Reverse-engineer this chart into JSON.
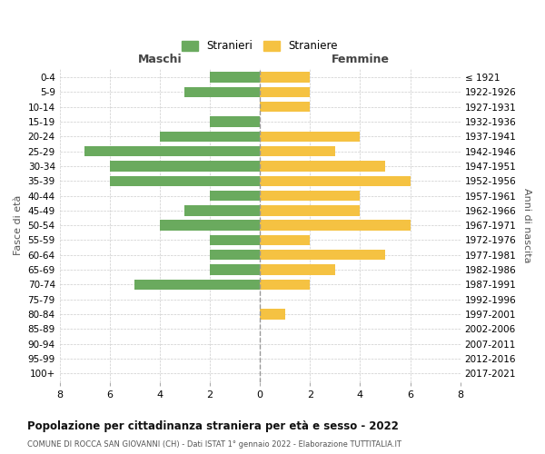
{
  "age_groups": [
    "0-4",
    "5-9",
    "10-14",
    "15-19",
    "20-24",
    "25-29",
    "30-34",
    "35-39",
    "40-44",
    "45-49",
    "50-54",
    "55-59",
    "60-64",
    "65-69",
    "70-74",
    "75-79",
    "80-84",
    "85-89",
    "90-94",
    "95-99",
    "100+"
  ],
  "birth_years": [
    "2017-2021",
    "2012-2016",
    "2007-2011",
    "2002-2006",
    "1997-2001",
    "1992-1996",
    "1987-1991",
    "1982-1986",
    "1977-1981",
    "1972-1976",
    "1967-1971",
    "1962-1966",
    "1957-1961",
    "1952-1956",
    "1947-1951",
    "1942-1946",
    "1937-1941",
    "1932-1936",
    "1927-1931",
    "1922-1926",
    "≤ 1921"
  ],
  "maschi": [
    2,
    3,
    0,
    2,
    4,
    7,
    6,
    6,
    2,
    3,
    4,
    2,
    2,
    2,
    5,
    0,
    0,
    0,
    0,
    0,
    0
  ],
  "femmine": [
    2,
    2,
    2,
    0,
    4,
    3,
    5,
    6,
    4,
    4,
    6,
    2,
    5,
    3,
    2,
    0,
    1,
    0,
    0,
    0,
    0
  ],
  "male_color": "#6aaa5e",
  "female_color": "#f5c242",
  "title": "Popolazione per cittadinanza straniera per età e sesso - 2022",
  "subtitle": "COMUNE DI ROCCA SAN GIOVANNI (CH) - Dati ISTAT 1° gennaio 2022 - Elaborazione TUTTITALIA.IT",
  "legend_male": "Stranieri",
  "legend_female": "Straniere",
  "xlabel_left": "Maschi",
  "xlabel_right": "Femmine",
  "ylabel_left": "Fasce di età",
  "ylabel_right": "Anni di nascita",
  "xlim": 8,
  "background_color": "#ffffff",
  "grid_color": "#cccccc"
}
